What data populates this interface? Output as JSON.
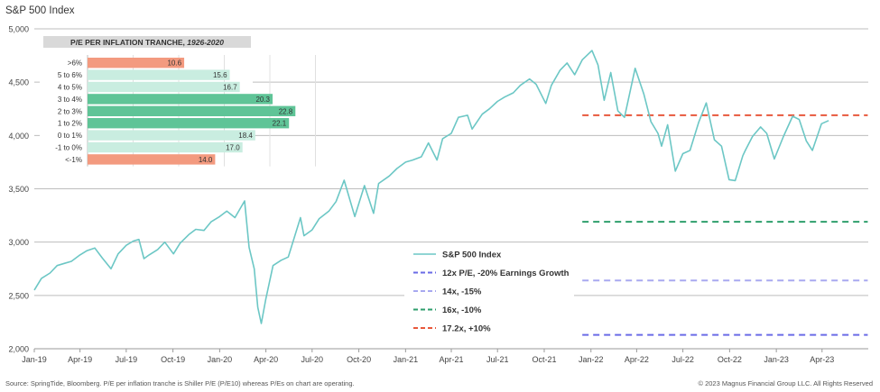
{
  "header": {
    "title": "S&P 500 Index"
  },
  "footer": {
    "source": "Source: SpringTide, Bloomberg. P/E per inflation tranche is Shiller P/E (P/E10) whereas P/Es on chart are operating.",
    "copyright": "© 2023 Magnus Financial Group LLC. All Rights Reserved"
  },
  "chart_data": [
    {
      "type": "line",
      "title": "S&P 500 Index",
      "y_ticks": [
        "2,000",
        "2,500",
        "3,000",
        "3,500",
        "4,000",
        "4,500",
        "5,000"
      ],
      "x_ticks": [
        "Jan-19",
        "Apr-19",
        "Jul-19",
        "Oct-19",
        "Jan-20",
        "Apr-20",
        "Jul-20",
        "Oct-20",
        "Jan-21",
        "Apr-21",
        "Jul-21",
        "Oct-21",
        "Jan-22",
        "Apr-22",
        "Jul-22",
        "Oct-22",
        "Jan-23",
        "Apr-23"
      ],
      "ylim": [
        2000,
        5000
      ],
      "grid": true,
      "legend_position": "bottom-center",
      "series": [
        {
          "name": "S&P 500 Index",
          "color": "#6cc7c5",
          "points": [
            [
              "2019-01-01",
              2550
            ],
            [
              "2019-01-15",
              2660
            ],
            [
              "2019-02-01",
              2710
            ],
            [
              "2019-02-15",
              2780
            ],
            [
              "2019-03-01",
              2800
            ],
            [
              "2019-03-15",
              2820
            ],
            [
              "2019-04-01",
              2880
            ],
            [
              "2019-04-15",
              2920
            ],
            [
              "2019-04-30",
              2945
            ],
            [
              "2019-05-15",
              2850
            ],
            [
              "2019-06-01",
              2750
            ],
            [
              "2019-06-15",
              2890
            ],
            [
              "2019-07-01",
              2970
            ],
            [
              "2019-07-15",
              3010
            ],
            [
              "2019-07-26",
              3025
            ],
            [
              "2019-08-05",
              2845
            ],
            [
              "2019-08-15",
              2880
            ],
            [
              "2019-09-01",
              2930
            ],
            [
              "2019-09-15",
              3000
            ],
            [
              "2019-10-02",
              2890
            ],
            [
              "2019-10-15",
              2990
            ],
            [
              "2019-11-01",
              3070
            ],
            [
              "2019-11-15",
              3120
            ],
            [
              "2019-12-01",
              3110
            ],
            [
              "2019-12-15",
              3190
            ],
            [
              "2020-01-01",
              3240
            ],
            [
              "2020-01-15",
              3290
            ],
            [
              "2020-01-31",
              3230
            ],
            [
              "2020-02-19",
              3386
            ],
            [
              "2020-02-28",
              2950
            ],
            [
              "2020-03-09",
              2750
            ],
            [
              "2020-03-16",
              2390
            ],
            [
              "2020-03-23",
              2237
            ],
            [
              "2020-04-01",
              2470
            ],
            [
              "2020-04-15",
              2780
            ],
            [
              "2020-05-01",
              2830
            ],
            [
              "2020-05-15",
              2860
            ],
            [
              "2020-06-08",
              3230
            ],
            [
              "2020-06-15",
              3060
            ],
            [
              "2020-07-01",
              3115
            ],
            [
              "2020-07-15",
              3220
            ],
            [
              "2020-08-03",
              3290
            ],
            [
              "2020-08-17",
              3380
            ],
            [
              "2020-09-02",
              3580
            ],
            [
              "2020-09-23",
              3240
            ],
            [
              "2020-10-12",
              3530
            ],
            [
              "2020-10-30",
              3270
            ],
            [
              "2020-11-09",
              3550
            ],
            [
              "2020-11-30",
              3620
            ],
            [
              "2020-12-15",
              3690
            ],
            [
              "2021-01-01",
              3750
            ],
            [
              "2021-01-15",
              3770
            ],
            [
              "2021-02-01",
              3800
            ],
            [
              "2021-02-15",
              3930
            ],
            [
              "2021-03-04",
              3770
            ],
            [
              "2021-03-15",
              3970
            ],
            [
              "2021-04-01",
              4020
            ],
            [
              "2021-04-15",
              4170
            ],
            [
              "2021-05-03",
              4190
            ],
            [
              "2021-05-12",
              4060
            ],
            [
              "2021-06-01",
              4200
            ],
            [
              "2021-06-15",
              4250
            ],
            [
              "2021-07-01",
              4320
            ],
            [
              "2021-07-15",
              4360
            ],
            [
              "2021-08-01",
              4400
            ],
            [
              "2021-08-15",
              4470
            ],
            [
              "2021-09-02",
              4530
            ],
            [
              "2021-09-15",
              4480
            ],
            [
              "2021-10-04",
              4300
            ],
            [
              "2021-10-15",
              4470
            ],
            [
              "2021-11-01",
              4610
            ],
            [
              "2021-11-15",
              4680
            ],
            [
              "2021-11-30",
              4570
            ],
            [
              "2021-12-15",
              4710
            ],
            [
              "2022-01-03",
              4796
            ],
            [
              "2022-01-15",
              4660
            ],
            [
              "2022-01-27",
              4330
            ],
            [
              "2022-02-09",
              4590
            ],
            [
              "2022-02-23",
              4230
            ],
            [
              "2022-03-08",
              4170
            ],
            [
              "2022-03-29",
              4630
            ],
            [
              "2022-04-15",
              4390
            ],
            [
              "2022-04-29",
              4130
            ],
            [
              "2022-05-13",
              4020
            ],
            [
              "2022-05-20",
              3900
            ],
            [
              "2022-06-01",
              4100
            ],
            [
              "2022-06-16",
              3666
            ],
            [
              "2022-07-01",
              3830
            ],
            [
              "2022-07-15",
              3860
            ],
            [
              "2022-08-01",
              4120
            ],
            [
              "2022-08-16",
              4305
            ],
            [
              "2022-09-01",
              3960
            ],
            [
              "2022-09-15",
              3900
            ],
            [
              "2022-09-30",
              3585
            ],
            [
              "2022-10-12",
              3577
            ],
            [
              "2022-10-27",
              3810
            ],
            [
              "2022-11-01",
              3860
            ],
            [
              "2022-11-15",
              3990
            ],
            [
              "2022-12-01",
              4080
            ],
            [
              "2022-12-13",
              4020
            ],
            [
              "2022-12-28",
              3780
            ],
            [
              "2023-01-15",
              3990
            ],
            [
              "2023-02-02",
              4180
            ],
            [
              "2023-02-15",
              4150
            ],
            [
              "2023-03-01",
              3950
            ],
            [
              "2023-03-13",
              3860
            ],
            [
              "2023-03-31",
              4110
            ],
            [
              "2023-04-14",
              4140
            ]
          ]
        },
        {
          "name": "12x P/E, -20% Earnings Growth",
          "color": "#6a6be6",
          "dash": true,
          "y": 2130,
          "from": "2021-12-15",
          "to": "2023-06-30"
        },
        {
          "name": "14x, -15%",
          "color": "#a8a9f0",
          "dash": true,
          "y": 2640,
          "from": "2021-12-15",
          "to": "2023-06-30"
        },
        {
          "name": "16x, -10%",
          "color": "#2e9e6c",
          "dash": true,
          "y": 3190,
          "from": "2021-12-15",
          "to": "2023-06-30"
        },
        {
          "name": "17.2x, +10%",
          "color": "#e8583c",
          "dash": true,
          "y": 4190,
          "from": "2021-12-15",
          "to": "2023-06-30"
        }
      ]
    },
    {
      "type": "bar",
      "title": "P/E PER INFLATION TRANCHE, 1926-2020",
      "title_main": "P/E PER INFLATION TRANCHE,",
      "title_years": "1926-2020",
      "categories": [
        ">6%",
        "5 to 6%",
        "4 to 5%",
        "3 to 4%",
        "2 to 3%",
        "1 to 2%",
        "0 to 1%",
        "-1 to 0%",
        "<-1%"
      ],
      "values": [
        10.6,
        15.6,
        16.7,
        20.3,
        22.8,
        22.1,
        18.4,
        17.0,
        14.0
      ],
      "labels": [
        "10.6",
        "15.6",
        "16.7",
        "20.3",
        "22.8",
        "22.1",
        "18.4",
        "17.0",
        "14.0"
      ],
      "colors": [
        "#f39a7f",
        "#c9ede0",
        "#c9ede0",
        "#5fc497",
        "#5fc497",
        "#5fc497",
        "#c9ede0",
        "#c9ede0",
        "#f39a7f"
      ]
    }
  ]
}
